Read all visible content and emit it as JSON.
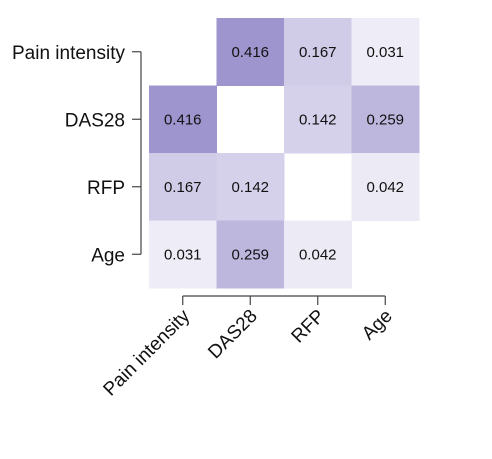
{
  "chart_data": {
    "type": "heatmap",
    "title": "",
    "variables": [
      "Pain intensity",
      "DAS28",
      "RFP",
      "Age"
    ],
    "matrix": [
      [
        null,
        0.416,
        0.167,
        0.031
      ],
      [
        0.416,
        null,
        0.142,
        0.259
      ],
      [
        0.167,
        0.142,
        null,
        0.042
      ],
      [
        0.031,
        0.259,
        0.042,
        null
      ]
    ],
    "value_labels": [
      [
        "",
        "0.416",
        "0.167",
        "0.031"
      ],
      [
        "0.416",
        "",
        "0.142",
        "0.259"
      ],
      [
        "0.167",
        "0.142",
        "",
        "0.042"
      ],
      [
        "0.031",
        "0.259",
        "0.042",
        ""
      ]
    ],
    "color_low": "#f7f6fb",
    "color_high": "#9e95ce",
    "diagonal_blank": true,
    "grid": false,
    "legend": "none"
  }
}
